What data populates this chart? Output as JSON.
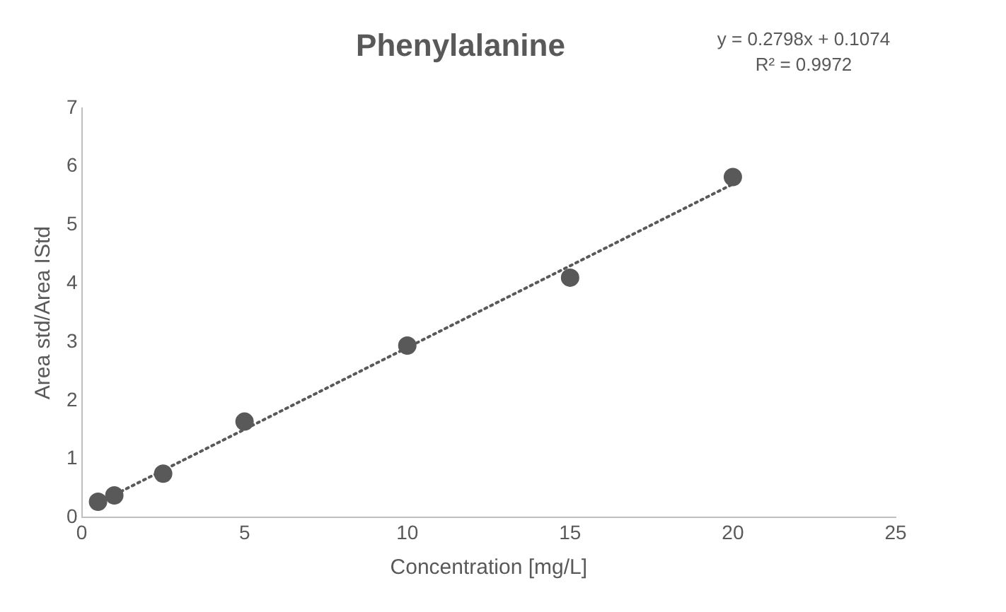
{
  "chart_data": {
    "type": "scatter",
    "title": "Phenylalanine",
    "xlabel": "Concentration [mg/L]",
    "ylabel": "Area std/Area IStd",
    "annotations": [
      "y = 0.2798x + 0.1074",
      "R² = 0.9972"
    ],
    "series": [
      {
        "type": "scatter",
        "color": "#595959",
        "marker": "circle",
        "x": [
          0.5,
          1,
          2.5,
          5,
          10,
          15,
          20
        ],
        "values": [
          0.27,
          0.38,
          0.75,
          1.64,
          2.94,
          4.1,
          5.82
        ]
      },
      {
        "type": "line",
        "color": "#595959",
        "marker": "none",
        "line_style": "dotted",
        "x": [
          0.5,
          20
        ],
        "values": [
          0.25,
          5.7
        ]
      }
    ],
    "xlim": [
      0,
      25
    ],
    "xticks": [
      0,
      5,
      10,
      15,
      20,
      25
    ],
    "ylim": [
      0,
      7
    ],
    "yticks": [
      0,
      1,
      2,
      3,
      4,
      5,
      6,
      7
    ],
    "grid": false,
    "legend": false
  }
}
